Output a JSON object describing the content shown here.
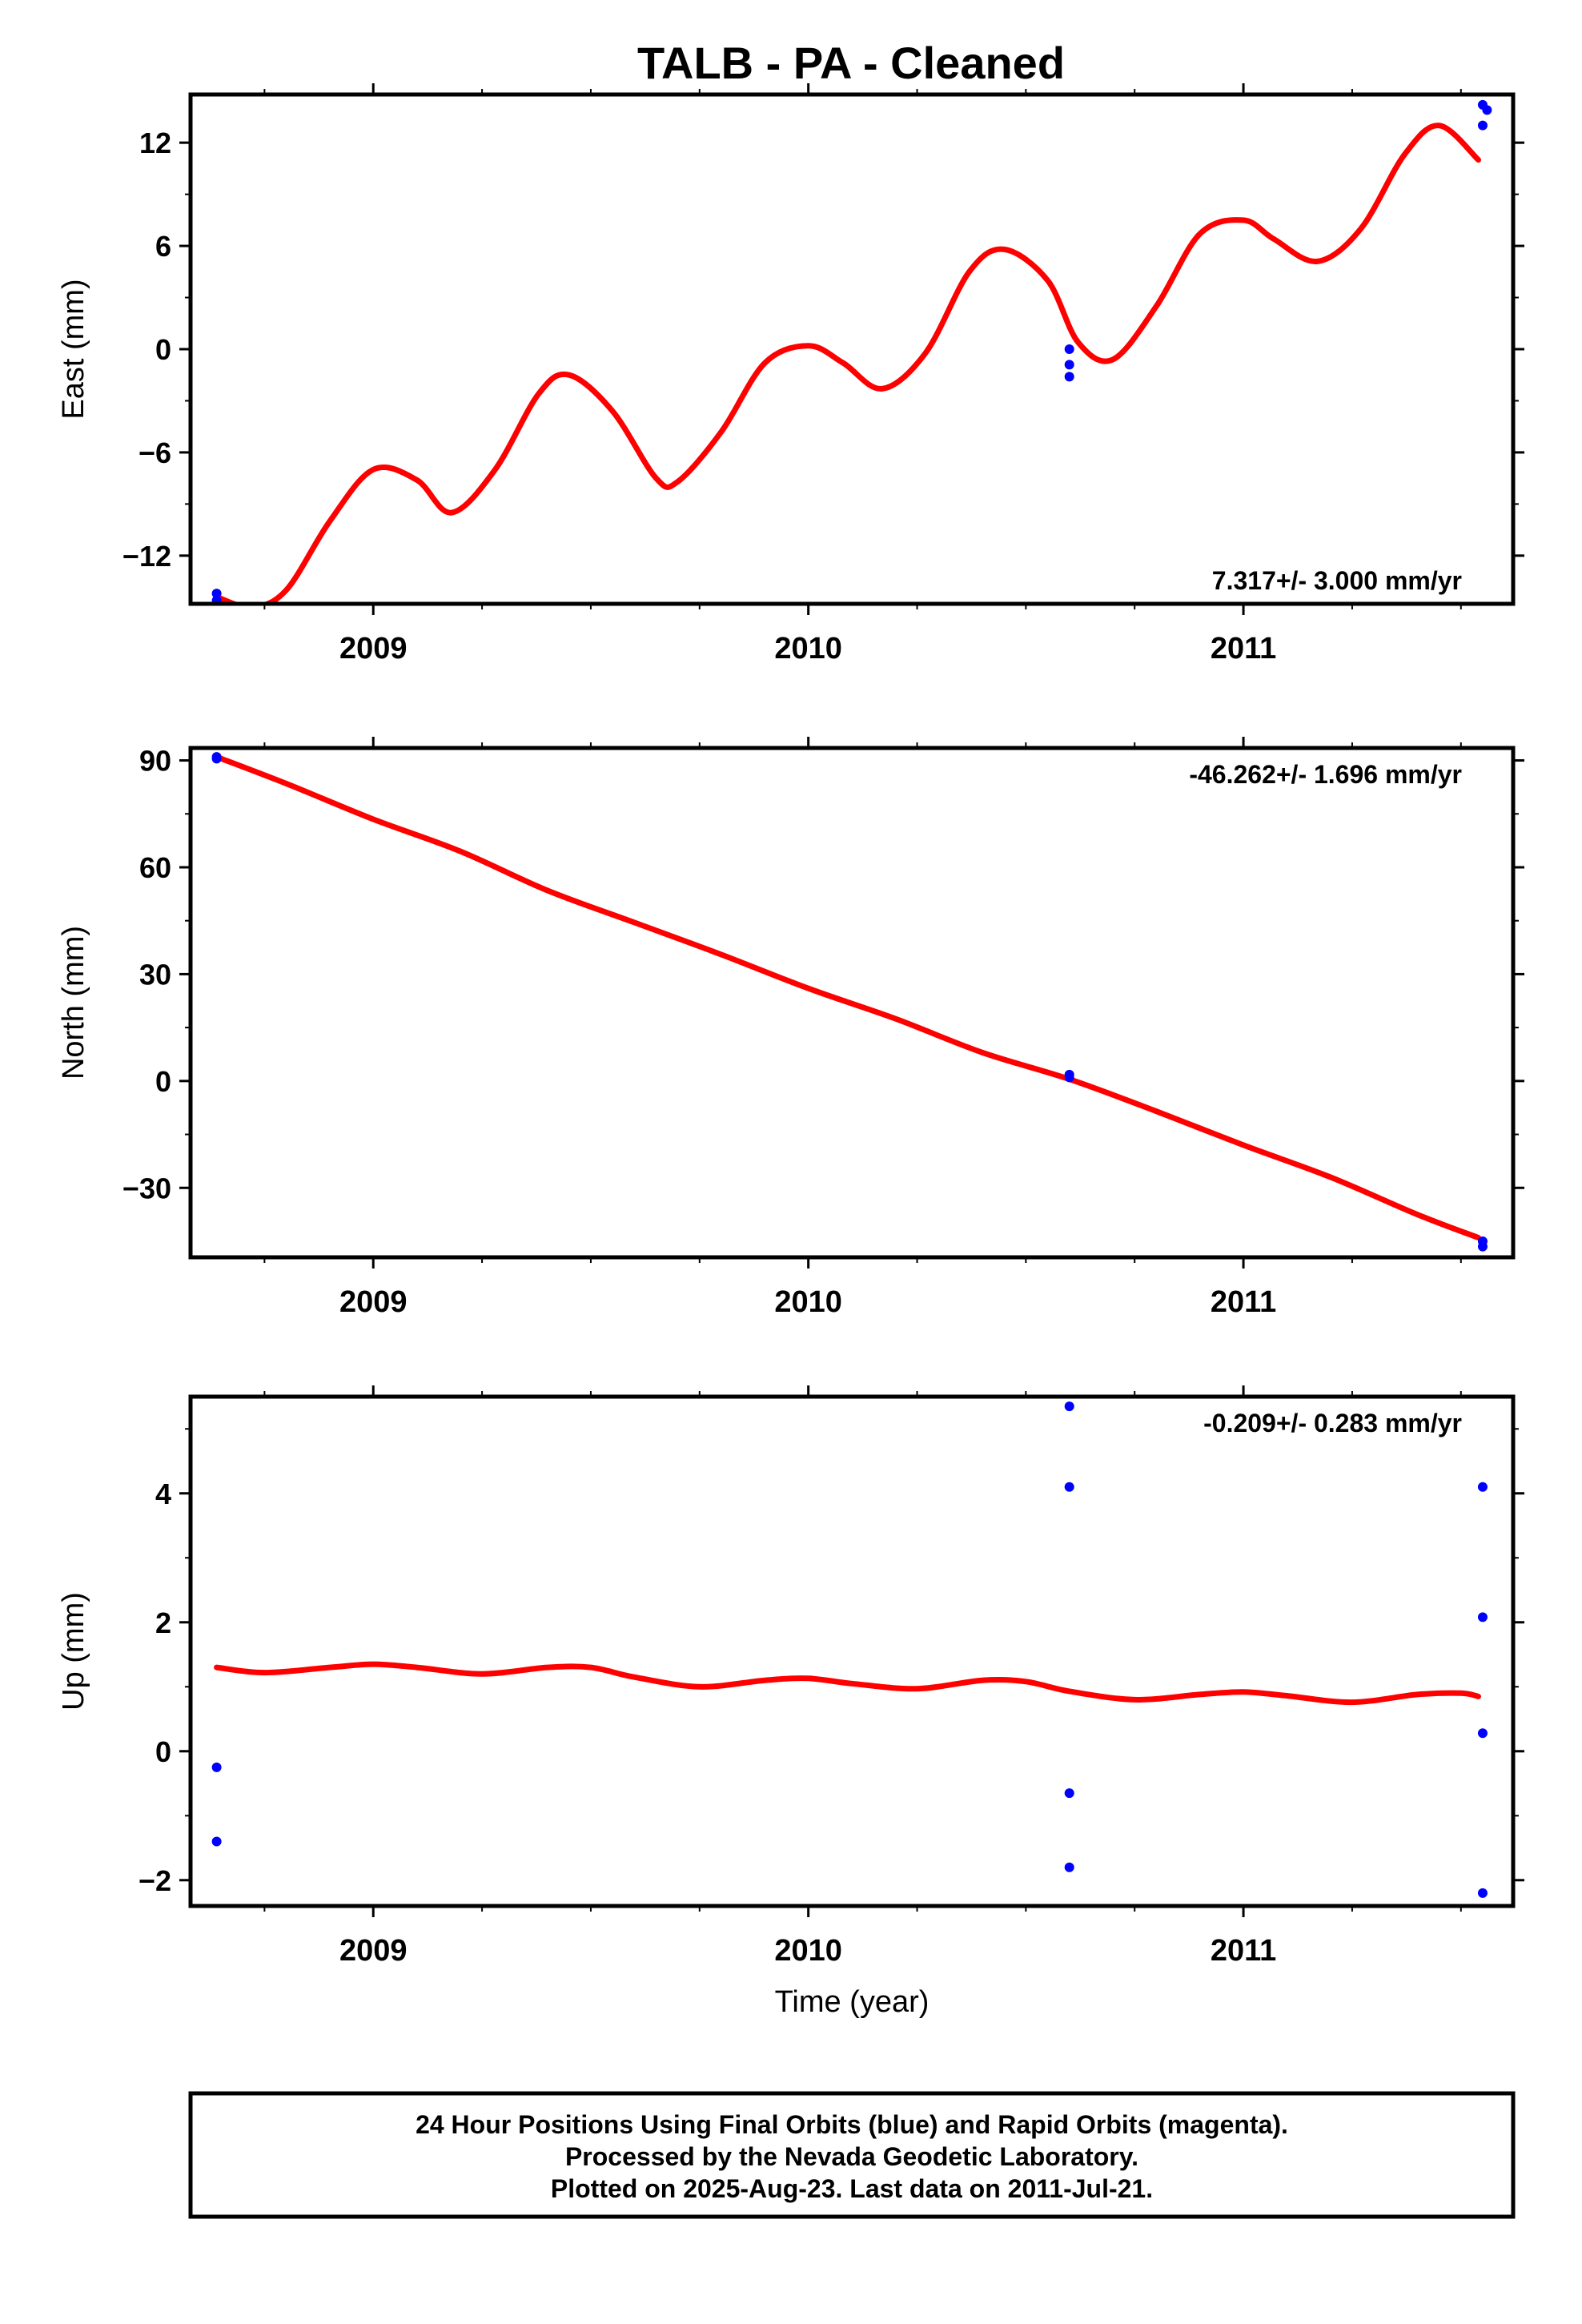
{
  "title": "TALB  - PA - Cleaned",
  "chart_data": [
    {
      "type": "scatter",
      "name": "east",
      "ylabel": "East (mm)",
      "xlabel": "",
      "xlim": [
        2008.58,
        2011.62
      ],
      "ylim": [
        -14.8,
        14.8
      ],
      "yticks": [
        -12,
        -6,
        0,
        6,
        12
      ],
      "yminor": [
        -9,
        -3,
        3,
        9
      ],
      "xticks": [
        2009,
        2010,
        2011
      ],
      "xminor": [
        2008.75,
        2009.25,
        2009.5,
        2009.75,
        2010.25,
        2010.5,
        2010.75,
        2011.25,
        2011.5
      ],
      "rate_text": "7.317+/- 3.000 mm/yr",
      "rate_position": "bottom-right",
      "points": [
        {
          "x": 2008.64,
          "y": -14.2
        },
        {
          "x": 2008.64,
          "y": -14.6
        },
        {
          "x": 2010.6,
          "y": 0.0
        },
        {
          "x": 2010.6,
          "y": -0.9
        },
        {
          "x": 2010.6,
          "y": -1.6
        },
        {
          "x": 2011.55,
          "y": 14.2
        },
        {
          "x": 2011.56,
          "y": 13.9
        },
        {
          "x": 2011.55,
          "y": 13.0
        }
      ],
      "model_curve": {
        "x": [
          2008.64,
          2008.72,
          2008.8,
          2008.9,
          2009.0,
          2009.1,
          2009.18,
          2009.28,
          2009.38,
          2009.45,
          2009.55,
          2009.65,
          2009.7,
          2009.8,
          2009.9,
          2010.0,
          2010.08,
          2010.17,
          2010.27,
          2010.37,
          2010.45,
          2010.55,
          2010.62,
          2010.7,
          2010.8,
          2010.9,
          2011.0,
          2011.07,
          2011.17,
          2011.27,
          2011.37,
          2011.45,
          2011.54
        ],
        "y": [
          -14.4,
          -15.0,
          -14.0,
          -10.0,
          -7.0,
          -7.6,
          -9.5,
          -7.0,
          -2.6,
          -1.5,
          -3.6,
          -7.5,
          -7.7,
          -4.8,
          -0.8,
          0.2,
          -0.8,
          -2.3,
          -0.2,
          4.5,
          5.8,
          4.0,
          0.4,
          -0.6,
          2.5,
          6.7,
          7.5,
          6.4,
          5.1,
          7.0,
          11.3,
          13.0,
          11.0
        ]
      }
    },
    {
      "type": "scatter",
      "name": "north",
      "ylabel": "North (mm)",
      "xlabel": "",
      "xlim": [
        2008.58,
        2011.62
      ],
      "ylim": [
        -49.5,
        93.5
      ],
      "yticks": [
        -30,
        0,
        30,
        60,
        90
      ],
      "yminor": [
        -15,
        15,
        45,
        75
      ],
      "xticks": [
        2009,
        2010,
        2011
      ],
      "xminor": [
        2008.75,
        2009.25,
        2009.5,
        2009.75,
        2010.25,
        2010.5,
        2010.75,
        2011.25,
        2011.5
      ],
      "rate_text": "-46.262+/- 1.696 mm/yr",
      "rate_position": "top-right",
      "points": [
        {
          "x": 2008.64,
          "y": 91.0
        },
        {
          "x": 2008.64,
          "y": 90.5
        },
        {
          "x": 2010.6,
          "y": 1.8
        },
        {
          "x": 2010.6,
          "y": 1.0
        },
        {
          "x": 2011.55,
          "y": -45.0
        },
        {
          "x": 2011.55,
          "y": -46.5
        }
      ],
      "model_curve": {
        "x": [
          2008.64,
          2008.8,
          2009.0,
          2009.2,
          2009.4,
          2009.6,
          2009.8,
          2010.0,
          2010.2,
          2010.4,
          2010.6,
          2010.8,
          2011.0,
          2011.2,
          2011.4,
          2011.54
        ],
        "y": [
          91.0,
          83.5,
          73.5,
          64.5,
          53.5,
          44.5,
          35.5,
          26.0,
          17.5,
          8.0,
          0.5,
          -8.5,
          -18.0,
          -27.0,
          -37.5,
          -44.0
        ]
      }
    },
    {
      "type": "scatter",
      "name": "up",
      "ylabel": "Up (mm)",
      "xlabel": "Time (year)",
      "xlim": [
        2008.58,
        2011.62
      ],
      "ylim": [
        -2.4,
        5.5
      ],
      "yticks": [
        -2,
        0,
        2,
        4
      ],
      "yminor": [
        -1,
        1,
        3,
        5
      ],
      "xticks": [
        2009,
        2010,
        2011
      ],
      "xminor": [
        2008.75,
        2009.25,
        2009.5,
        2009.75,
        2010.25,
        2010.5,
        2010.75,
        2011.25,
        2011.5
      ],
      "rate_text": "-0.209+/- 0.283 mm/yr",
      "rate_position": "top-right",
      "points": [
        {
          "x": 2008.64,
          "y": -0.25
        },
        {
          "x": 2008.64,
          "y": -1.4
        },
        {
          "x": 2010.6,
          "y": 5.35
        },
        {
          "x": 2010.6,
          "y": 4.1
        },
        {
          "x": 2010.6,
          "y": -0.65
        },
        {
          "x": 2010.6,
          "y": -1.8
        },
        {
          "x": 2011.55,
          "y": 4.1
        },
        {
          "x": 2011.55,
          "y": 2.08
        },
        {
          "x": 2011.55,
          "y": 0.28
        },
        {
          "x": 2011.55,
          "y": -2.2
        }
      ],
      "model_curve": {
        "x": [
          2008.64,
          2008.75,
          2008.9,
          2009.0,
          2009.1,
          2009.25,
          2009.4,
          2009.5,
          2009.6,
          2009.75,
          2009.9,
          2010.0,
          2010.1,
          2010.25,
          2010.4,
          2010.5,
          2010.6,
          2010.75,
          2010.9,
          2011.0,
          2011.1,
          2011.25,
          2011.4,
          2011.5,
          2011.54
        ],
        "y": [
          1.3,
          1.22,
          1.3,
          1.35,
          1.3,
          1.2,
          1.3,
          1.3,
          1.15,
          1.0,
          1.1,
          1.13,
          1.05,
          0.97,
          1.1,
          1.08,
          0.93,
          0.8,
          0.88,
          0.92,
          0.86,
          0.76,
          0.88,
          0.9,
          0.85
        ]
      }
    }
  ],
  "footer": {
    "lines": [
      "24 Hour Positions Using Final Orbits (blue) and Rapid Orbits (magenta).",
      "Processed by the Nevada Geodetic Laboratory.",
      "Plotted on 2025-Aug-23. Last data on 2011-Jul-21."
    ]
  },
  "colors": {
    "points": "#0000ff",
    "model": "#ff0000",
    "frame": "#000000"
  }
}
